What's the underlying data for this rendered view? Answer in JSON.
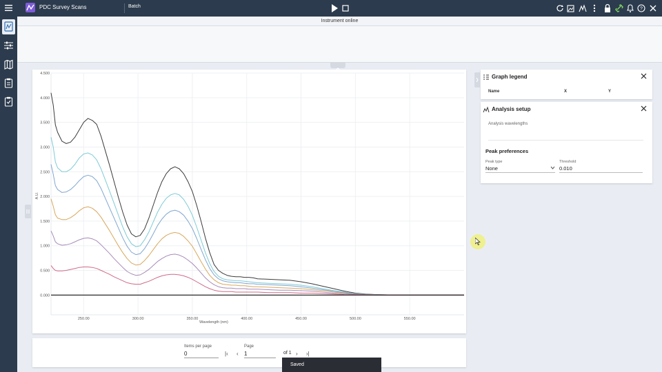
{
  "app": {
    "title": "PDC Survey Scans",
    "mode": "Batch",
    "status": "Instrument online"
  },
  "toolbar": {
    "play_icon": "play-icon",
    "stop_icon": "stop-icon",
    "right_icons": [
      "refresh-icon",
      "export-image-icon",
      "peak-icon",
      "more-vertical-icon",
      "lock-icon",
      "link-icon",
      "bell-icon",
      "help-icon",
      "close-icon"
    ]
  },
  "sidebar": {
    "items": [
      {
        "icon": "spectrum-icon",
        "active": true
      },
      {
        "icon": "sliders-icon",
        "active": false
      },
      {
        "icon": "map-icon",
        "active": false
      },
      {
        "icon": "clipboard-icon",
        "active": false
      },
      {
        "icon": "clipboard-check-icon",
        "active": false
      }
    ]
  },
  "chart_data": {
    "type": "line",
    "xlabel": "Wavelength (nm)",
    "ylabel": "A.U.",
    "xlim": [
      220,
      600
    ],
    "ylim": [
      -0.4,
      4.5
    ],
    "xticks": [
      250,
      300,
      350,
      400,
      450,
      500,
      550
    ],
    "xtick_labels": [
      "250.00",
      "300.00",
      "350.00",
      "400.00",
      "450.00",
      "500.00",
      "550.00"
    ],
    "yticks": [
      0,
      0.5,
      1,
      1.5,
      2,
      2.5,
      3,
      3.5,
      4,
      4.5
    ],
    "ytick_labels": [
      "0.000",
      "0.500",
      "1.000",
      "1.500",
      "2.000",
      "2.500",
      "3.000",
      "3.500",
      "4.000",
      "4.500"
    ],
    "grid": true,
    "series": [
      {
        "color": "#3a3a3a",
        "x": [
          220,
          222,
          224,
          226,
          230,
          234,
          238,
          242,
          246,
          250,
          254,
          258,
          262,
          266,
          270,
          274,
          278,
          282,
          286,
          290,
          294,
          298,
          302,
          306,
          310,
          314,
          318,
          322,
          326,
          330,
          334,
          338,
          342,
          346,
          350,
          354,
          358,
          362,
          366,
          370,
          374,
          378,
          382,
          386,
          390,
          394,
          398,
          402,
          406,
          410,
          420,
          430,
          440,
          450,
          460,
          470,
          480,
          490,
          500,
          510,
          520,
          530,
          540,
          550,
          560,
          580,
          600
        ],
        "y": [
          4.1,
          3.85,
          3.45,
          3.3,
          3.12,
          3.07,
          3.1,
          3.2,
          3.35,
          3.5,
          3.58,
          3.54,
          3.46,
          3.22,
          2.92,
          2.62,
          2.3,
          1.98,
          1.68,
          1.42,
          1.24,
          1.18,
          1.21,
          1.34,
          1.56,
          1.82,
          2.08,
          2.3,
          2.46,
          2.56,
          2.6,
          2.56,
          2.46,
          2.3,
          2.1,
          1.82,
          1.5,
          1.16,
          0.86,
          0.62,
          0.5,
          0.44,
          0.4,
          0.38,
          0.37,
          0.37,
          0.36,
          0.36,
          0.35,
          0.33,
          0.32,
          0.31,
          0.3,
          0.27,
          0.23,
          0.18,
          0.13,
          0.08,
          0.04,
          0.02,
          0.01,
          0.005,
          0,
          0,
          0,
          0,
          0
        ]
      },
      {
        "color": "#7ecbd6",
        "x": [
          220,
          222,
          224,
          226,
          230,
          234,
          238,
          242,
          246,
          250,
          254,
          258,
          262,
          266,
          270,
          274,
          278,
          282,
          286,
          290,
          294,
          298,
          302,
          306,
          310,
          314,
          318,
          322,
          326,
          330,
          334,
          338,
          342,
          346,
          350,
          354,
          358,
          362,
          366,
          370,
          374,
          378,
          382,
          386,
          390,
          394,
          398,
          402,
          406,
          410,
          420,
          430,
          440,
          450,
          460,
          470,
          480,
          490,
          500,
          510,
          520,
          530,
          540,
          550,
          560,
          580,
          600
        ],
        "y": [
          3.2,
          3.0,
          2.7,
          2.58,
          2.5,
          2.5,
          2.55,
          2.65,
          2.78,
          2.86,
          2.88,
          2.84,
          2.74,
          2.56,
          2.33,
          2.1,
          1.86,
          1.62,
          1.38,
          1.18,
          1.04,
          0.98,
          1.0,
          1.12,
          1.28,
          1.48,
          1.68,
          1.84,
          1.96,
          2.03,
          2.06,
          2.03,
          1.94,
          1.8,
          1.62,
          1.38,
          1.12,
          0.86,
          0.64,
          0.48,
          0.38,
          0.33,
          0.31,
          0.3,
          0.29,
          0.29,
          0.28,
          0.27,
          0.26,
          0.25,
          0.24,
          0.23,
          0.22,
          0.2,
          0.17,
          0.13,
          0.09,
          0.06,
          0.03,
          0.015,
          0.008,
          0.004,
          0,
          0,
          0,
          0,
          0
        ]
      },
      {
        "color": "#7fa6d0",
        "x": [
          220,
          222,
          224,
          226,
          230,
          234,
          238,
          242,
          246,
          250,
          254,
          258,
          262,
          266,
          270,
          274,
          278,
          282,
          286,
          290,
          294,
          298,
          302,
          306,
          310,
          314,
          318,
          322,
          326,
          330,
          334,
          338,
          342,
          346,
          350,
          354,
          358,
          362,
          366,
          370,
          374,
          378,
          382,
          386,
          390,
          394,
          398,
          402,
          406,
          410,
          420,
          430,
          440,
          450,
          460,
          470,
          480,
          490,
          500,
          510,
          520,
          530,
          540,
          550,
          560,
          580,
          600
        ],
        "y": [
          2.65,
          2.45,
          2.22,
          2.14,
          2.08,
          2.09,
          2.14,
          2.22,
          2.32,
          2.4,
          2.43,
          2.4,
          2.32,
          2.16,
          1.96,
          1.76,
          1.56,
          1.36,
          1.16,
          0.99,
          0.87,
          0.82,
          0.84,
          0.94,
          1.08,
          1.24,
          1.41,
          1.54,
          1.64,
          1.7,
          1.72,
          1.69,
          1.62,
          1.5,
          1.35,
          1.15,
          0.93,
          0.72,
          0.54,
          0.41,
          0.33,
          0.29,
          0.27,
          0.26,
          0.25,
          0.25,
          0.24,
          0.23,
          0.23,
          0.22,
          0.21,
          0.2,
          0.19,
          0.17,
          0.14,
          0.11,
          0.08,
          0.05,
          0.03,
          0.013,
          0.006,
          0.003,
          0,
          0,
          0,
          0,
          0
        ]
      },
      {
        "color": "#d8a85c",
        "x": [
          220,
          222,
          224,
          226,
          230,
          234,
          238,
          242,
          246,
          250,
          254,
          258,
          262,
          266,
          270,
          274,
          278,
          282,
          286,
          290,
          294,
          298,
          302,
          306,
          310,
          314,
          318,
          322,
          326,
          330,
          334,
          338,
          342,
          346,
          350,
          354,
          358,
          362,
          366,
          370,
          374,
          378,
          382,
          386,
          390,
          394,
          398,
          402,
          406,
          410,
          420,
          430,
          440,
          450,
          460,
          470,
          480,
          490,
          500,
          510,
          520,
          530,
          540,
          550,
          560,
          580,
          600
        ],
        "y": [
          1.95,
          1.8,
          1.63,
          1.56,
          1.53,
          1.53,
          1.57,
          1.63,
          1.71,
          1.77,
          1.79,
          1.76,
          1.69,
          1.58,
          1.44,
          1.3,
          1.15,
          1.0,
          0.86,
          0.74,
          0.65,
          0.61,
          0.62,
          0.7,
          0.8,
          0.92,
          1.04,
          1.14,
          1.21,
          1.25,
          1.27,
          1.25,
          1.19,
          1.1,
          0.99,
          0.84,
          0.68,
          0.53,
          0.4,
          0.31,
          0.25,
          0.22,
          0.21,
          0.2,
          0.2,
          0.19,
          0.19,
          0.18,
          0.17,
          0.17,
          0.16,
          0.15,
          0.14,
          0.13,
          0.11,
          0.09,
          0.06,
          0.04,
          0.02,
          0.01,
          0.005,
          0.002,
          0,
          0,
          0,
          0,
          0
        ]
      },
      {
        "color": "#a78ab8",
        "x": [
          220,
          222,
          224,
          226,
          230,
          234,
          238,
          242,
          246,
          250,
          254,
          258,
          262,
          266,
          270,
          274,
          278,
          282,
          286,
          290,
          294,
          298,
          302,
          306,
          310,
          314,
          318,
          322,
          326,
          330,
          334,
          338,
          342,
          346,
          350,
          354,
          358,
          362,
          366,
          370,
          374,
          378,
          382,
          386,
          390,
          394,
          398,
          402,
          406,
          410,
          420,
          430,
          440,
          450,
          460,
          470,
          480,
          490,
          500,
          510,
          520,
          530,
          540,
          550,
          560,
          580,
          600
        ],
        "y": [
          1.3,
          1.2,
          1.08,
          1.04,
          1.01,
          1.02,
          1.04,
          1.08,
          1.12,
          1.15,
          1.16,
          1.14,
          1.1,
          1.02,
          0.93,
          0.84,
          0.74,
          0.65,
          0.56,
          0.48,
          0.43,
          0.4,
          0.41,
          0.46,
          0.52,
          0.6,
          0.68,
          0.74,
          0.79,
          0.82,
          0.83,
          0.81,
          0.77,
          0.71,
          0.64,
          0.55,
          0.45,
          0.35,
          0.27,
          0.21,
          0.17,
          0.15,
          0.14,
          0.14,
          0.13,
          0.13,
          0.13,
          0.12,
          0.12,
          0.12,
          0.11,
          0.1,
          0.1,
          0.09,
          0.08,
          0.06,
          0.04,
          0.03,
          0.015,
          0.007,
          0.003,
          0.001,
          0,
          0,
          0,
          0,
          0
        ]
      },
      {
        "color": "#cf6a86",
        "x": [
          220,
          222,
          224,
          226,
          230,
          234,
          238,
          242,
          246,
          250,
          254,
          258,
          262,
          266,
          270,
          274,
          278,
          282,
          286,
          290,
          294,
          298,
          302,
          306,
          310,
          314,
          318,
          322,
          326,
          330,
          334,
          338,
          342,
          346,
          350,
          354,
          358,
          362,
          366,
          370,
          374,
          378,
          382,
          386,
          390,
          394,
          398,
          402,
          406,
          410,
          420,
          430,
          440,
          450,
          460,
          470,
          480,
          490,
          500,
          510,
          520,
          530,
          540,
          550,
          560,
          580,
          600
        ],
        "y": [
          0.6,
          0.54,
          0.5,
          0.49,
          0.49,
          0.5,
          0.52,
          0.54,
          0.56,
          0.57,
          0.57,
          0.56,
          0.54,
          0.5,
          0.46,
          0.42,
          0.37,
          0.33,
          0.29,
          0.25,
          0.23,
          0.22,
          0.22,
          0.25,
          0.28,
          0.32,
          0.36,
          0.39,
          0.41,
          0.42,
          0.42,
          0.41,
          0.39,
          0.36,
          0.32,
          0.27,
          0.22,
          0.17,
          0.13,
          0.1,
          0.08,
          0.07,
          0.07,
          0.07,
          0.06,
          0.06,
          0.06,
          0.06,
          0.06,
          0.06,
          0.05,
          0.05,
          0.05,
          0.04,
          0.04,
          0.03,
          0.02,
          0.01,
          0.007,
          0.003,
          0.001,
          0,
          0,
          0,
          0,
          0,
          0
        ]
      },
      {
        "color": "#111111",
        "x": [
          220,
          600
        ],
        "y": [
          0,
          0
        ]
      }
    ]
  },
  "pager": {
    "items_per_page_label": "Items per page",
    "items_per_page_value": "0",
    "page_label": "Page",
    "page_value": "1",
    "of_text": "of 1",
    "first_icon": "first-page-icon",
    "prev_icon": "prev-page-icon",
    "next_icon": "next-page-icon",
    "last_icon": "last-page-icon"
  },
  "legend_panel": {
    "title": "Graph legend",
    "columns": [
      "Name",
      "X",
      "Y"
    ]
  },
  "analysis_panel": {
    "title": "Analysis setup",
    "wavelengths_label": "Analysis wavelengths",
    "peak_section_title": "Peak preferences",
    "peak_type_label": "Peak type",
    "peak_type_value": "None",
    "threshold_label": "Threshold",
    "threshold_value": "0.010"
  },
  "toast": {
    "text": "Saved"
  }
}
